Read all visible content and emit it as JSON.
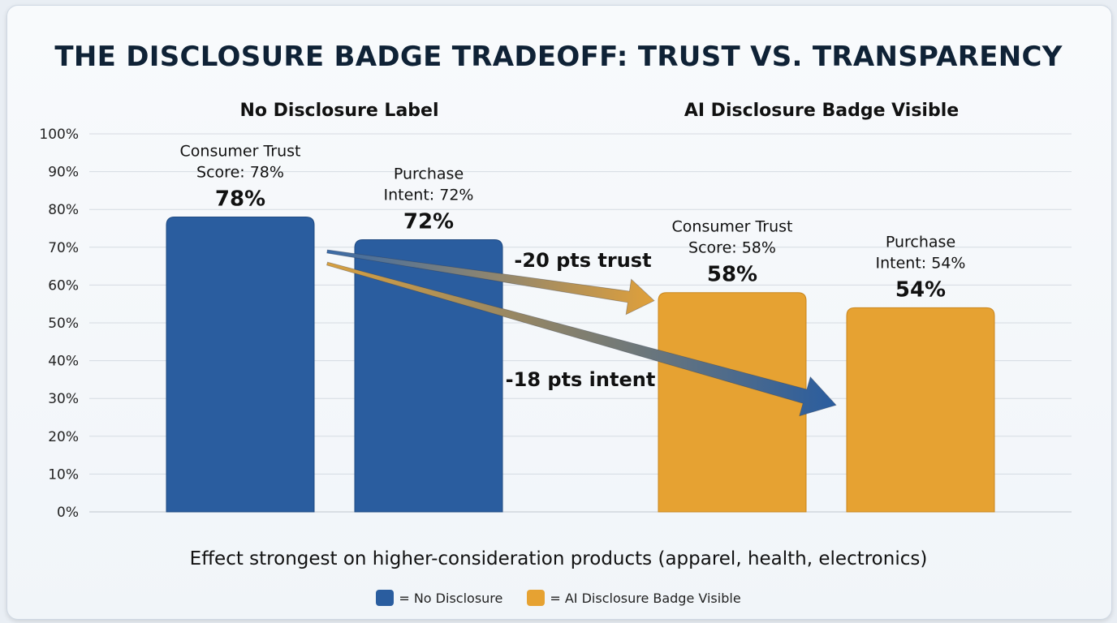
{
  "chart_data": {
    "type": "bar",
    "title": "THE DISCLOSURE BADGE TRADEOFF: TRUST VS. TRANSPARENCY",
    "groups": [
      "No Disclosure Label",
      "AI Disclosure Badge Visible"
    ],
    "ylim": [
      0,
      100
    ],
    "yticks": [
      "0%",
      "10%",
      "20%",
      "30%",
      "40%",
      "50%",
      "60%",
      "70%",
      "80%",
      "90%",
      "100%"
    ],
    "grid": true,
    "bars": [
      {
        "group": "No Disclosure Label",
        "label_line1": "Consumer Trust",
        "label_line2": "Score: 78%",
        "value": 78,
        "value_label": "78%",
        "color": "#2a5d9f"
      },
      {
        "group": "No Disclosure Label",
        "label_line1": "Purchase",
        "label_line2": "Intent: 72%",
        "value": 72,
        "value_label": "72%",
        "color": "#2a5d9f"
      },
      {
        "group": "AI Disclosure Badge Visible",
        "label_line1": "Consumer Trust",
        "label_line2": "Score: 58%",
        "value": 58,
        "value_label": "58%",
        "color": "#e6a232"
      },
      {
        "group": "AI Disclosure Badge Visible",
        "label_line1": "Purchase",
        "label_line2": "Intent: 54%",
        "value": 54,
        "value_label": "54%",
        "color": "#e6a232"
      }
    ],
    "annotations": [
      {
        "text": "-20 pts trust",
        "from_bar": 0,
        "to_bar": 2,
        "arrow_color": "#d99a36"
      },
      {
        "text": "-18 pts intent",
        "from_bar": 0,
        "to_bar": 3,
        "arrow_color": "#2d5f9c"
      }
    ],
    "legend": [
      {
        "label": "= No Disclosure",
        "color": "#2a5d9f"
      },
      {
        "label": "= AI Disclosure Badge Visible",
        "color": "#e6a232"
      }
    ],
    "legend_position": "bottom-center"
  },
  "footnote": "Effect strongest on higher-consideration products (apparel, health, electronics)"
}
